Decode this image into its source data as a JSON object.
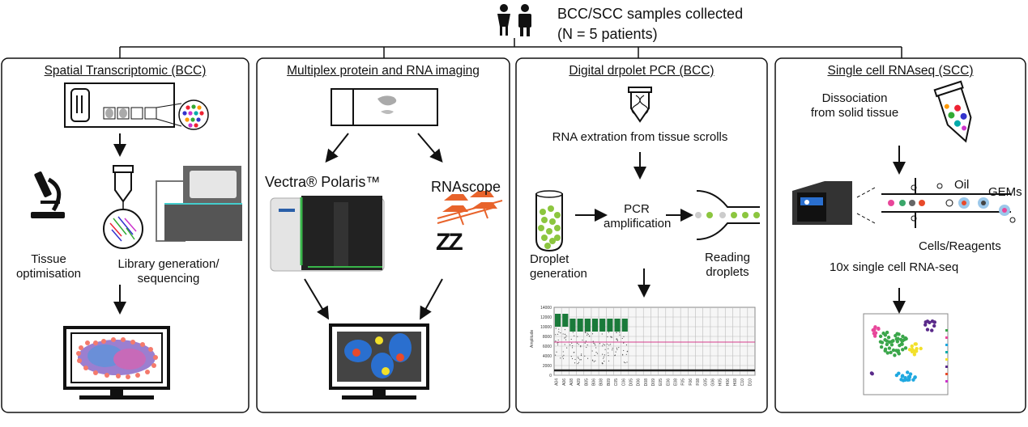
{
  "header": {
    "line1": "BCC/SCC samples collected",
    "line2": "(N = 5 patients)"
  },
  "panels": [
    {
      "title": "Spatial Transcriptomic (BCC)",
      "labels": {
        "tissue": "Tissue\noptimisation",
        "library": "Library generation/\nsequencing"
      }
    },
    {
      "title": "Multiplex protein and RNA imaging",
      "labels": {
        "vectra": "Vectra® Polaris™",
        "rnascope": "RNAscope"
      }
    },
    {
      "title": "Digital drpolet PCR (BCC)",
      "labels": {
        "extraction": "RNA extration from tissue scrolls",
        "pcr": "PCR\namplification",
        "droplet": "Droplet\ngeneration",
        "reading": "Reading\ndroplets"
      }
    },
    {
      "title": "Single cell RNAseq (SCC)",
      "labels": {
        "dissociation": "Dissociation\nfrom solid tissue",
        "oil": "Oil",
        "gems": "GEMs",
        "cells": "Cells/Reagents",
        "tenx": "10x single cell RNA-seq"
      }
    }
  ],
  "ddpcr_plot": {
    "ylabel": "Amplitude",
    "y_ticks": [
      "14000",
      "12000",
      "10000",
      "8000",
      "6000",
      "4000",
      "2000",
      "0"
    ],
    "x_ticks": [
      "A04",
      "A06",
      "A08",
      "A09",
      "B05",
      "B06",
      "B08",
      "B09",
      "C05",
      "C06",
      "D05",
      "D06",
      "D08",
      "D09",
      "E05",
      "E06",
      "E08",
      "F05",
      "F06",
      "F08",
      "G05",
      "G06",
      "H05",
      "H06",
      "H08",
      "C10",
      "D10"
    ]
  },
  "colors": {
    "accent_green": "#1a7a3a",
    "accent_orange": "#e8632b",
    "threshold": "#d63c8c"
  }
}
